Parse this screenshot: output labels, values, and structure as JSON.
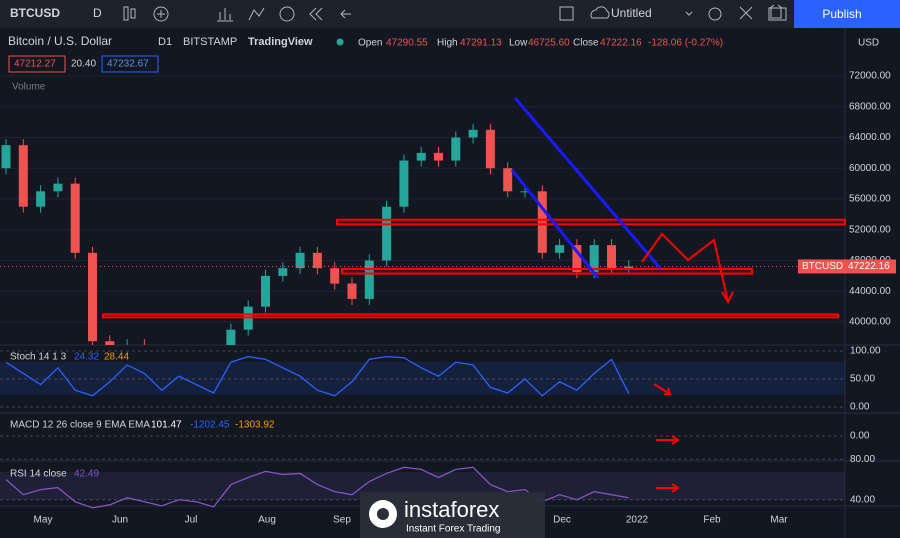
{
  "toolbar": {
    "symbol": "BTCUSD",
    "interval": "D",
    "layout_name": "Untitled",
    "publish": "Publish"
  },
  "legend": {
    "name": "Bitcoin / U.S. Dollar",
    "interval": "D1",
    "exchange": "BITSTAMP",
    "source": "TradingView",
    "open_label": "Open",
    "open": "47290.55",
    "high_label": "High",
    "high": "47291.13",
    "low_label": "Low",
    "low": "46725.60",
    "close_label": "Close",
    "close": "47222.16",
    "change": "-128.06 (-0.27%)",
    "bid": "47212.27",
    "spread": "20.40",
    "ask": "47232.67",
    "volume": "Volume"
  },
  "price_axis": {
    "currency": "USD",
    "symbol_tag": "BTCUSD",
    "last_price": "47222.16"
  },
  "price": {
    "ylim": [
      40000,
      72000
    ],
    "yticks": [
      {
        "value": 40000,
        "label": "40000.00"
      },
      {
        "value": 44000,
        "label": "44000.00"
      },
      {
        "value": 48000,
        "label": "48000.00"
      },
      {
        "value": 52000,
        "label": "52000.00"
      },
      {
        "value": 56000,
        "label": "56000.00"
      },
      {
        "value": 60000,
        "label": "60000.00"
      },
      {
        "value": 64000,
        "label": "64000.00"
      },
      {
        "value": 68000,
        "label": "68000.00"
      },
      {
        "value": 72000,
        "label": "72000.00"
      }
    ],
    "first_open": 60000,
    "closes": [
      63000,
      55000,
      57000,
      58000,
      49000,
      37500,
      35000,
      37000,
      35500,
      33500,
      35000,
      34000,
      31500,
      39000,
      42000,
      46000,
      47000,
      49000,
      47000,
      45000,
      43000,
      48000,
      55000,
      61000,
      62000,
      61000,
      64000,
      65000,
      60000,
      57000,
      57000,
      49000,
      50000,
      46500,
      50000,
      47000,
      47222.16
    ],
    "zones": [
      [
        52700,
        53300
      ],
      [
        46300,
        46900
      ],
      [
        40600,
        41000
      ]
    ]
  },
  "stoch": {
    "label": "Stoch 14 1 3",
    "k": "24.32",
    "d": "28.44",
    "ylim": [
      0,
      100
    ],
    "yticks": [
      {
        "value": 100,
        "label": "100.00"
      },
      {
        "value": 50,
        "label": "50.00"
      },
      {
        "value": 0,
        "label": "0.00"
      }
    ],
    "values": [
      80,
      60,
      40,
      70,
      30,
      20,
      45,
      75,
      60,
      30,
      55,
      40,
      25,
      80,
      90,
      85,
      70,
      55,
      30,
      20,
      45,
      85,
      90,
      88,
      70,
      55,
      80,
      75,
      35,
      25,
      50,
      20,
      45,
      30,
      60,
      85,
      24
    ]
  },
  "macd": {
    "label": "MACD 12 26 close 9 EMA EMA",
    "hist": "101.47",
    "macd": "-1202.45",
    "signal": "-1303.92",
    "yticks": [
      {
        "value": 0,
        "label": "0.00"
      }
    ]
  },
  "rsi": {
    "label": "RSI 14 close",
    "value": "42.49",
    "ylim": [
      20,
      100
    ],
    "yticks": [
      {
        "value": 80,
        "label": "80.00"
      },
      {
        "value": 40,
        "label": "40.00"
      }
    ],
    "values": [
      60,
      45,
      50,
      52,
      38,
      32,
      35,
      42,
      38,
      34,
      40,
      38,
      33,
      55,
      62,
      68,
      65,
      66,
      55,
      48,
      45,
      58,
      66,
      72,
      70,
      62,
      70,
      72,
      55,
      48,
      50,
      38,
      45,
      40,
      48,
      45,
      42
    ]
  },
  "time_axis": [
    "May",
    "Jun",
    "Jul",
    "Aug",
    "Sep",
    "Oct",
    "Nov",
    "Dec",
    "2022",
    "Feb",
    "Mar"
  ],
  "watermark": {
    "brand": "instaforex",
    "tagline": "Instant Forex Trading"
  }
}
